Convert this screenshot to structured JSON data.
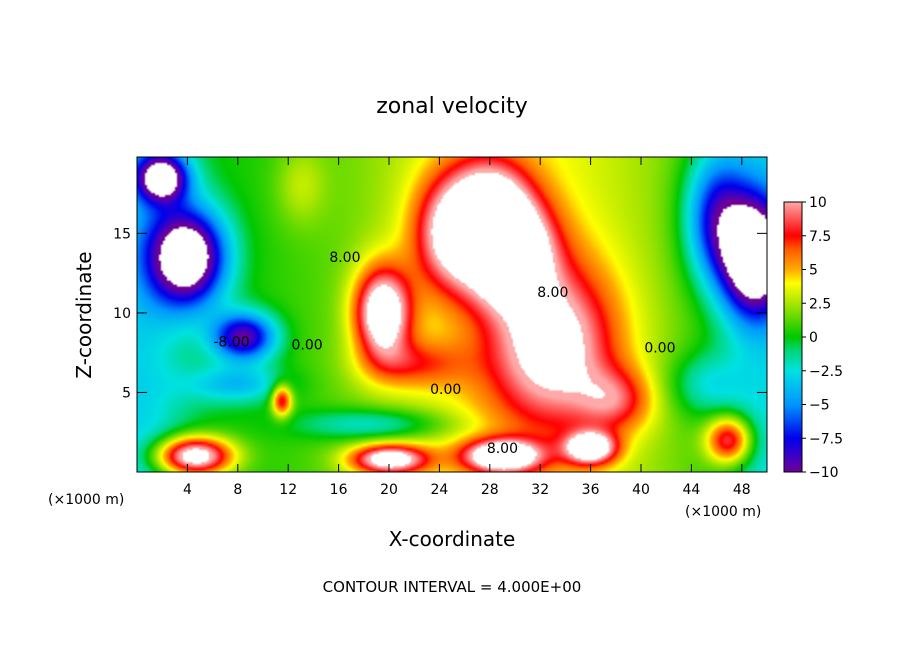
{
  "chart_data": {
    "type": "heatmap",
    "title": "zonal velocity",
    "xlabel": "X-coordinate",
    "ylabel": "Z-coordinate",
    "x_unit": "(×1000 m)",
    "x_unit_right": "(×1000 m)",
    "xlim": [
      0,
      50
    ],
    "ylim": [
      0,
      19.8
    ],
    "x_ticks": [
      4,
      8,
      12,
      16,
      20,
      24,
      28,
      32,
      36,
      40,
      44,
      48
    ],
    "y_ticks": [
      5,
      10,
      15
    ],
    "colorbar": {
      "ticks": [
        "10",
        "7.5",
        "5",
        "2.5",
        "0",
        "−2.5",
        "−5",
        "−7.5",
        "−10"
      ],
      "tick_values": [
        10,
        7.5,
        5,
        2.5,
        0,
        -2.5,
        -5,
        -7.5,
        -10
      ],
      "range": [
        -10,
        10
      ]
    },
    "contour_interval": 4.0,
    "footer": "CONTOUR INTERVAL = 4.000E+00",
    "contour_labels": [
      {
        "text": "8.00",
        "x": 16.5,
        "y": 13.2
      },
      {
        "text": "8.00",
        "x": 33.0,
        "y": 11.0
      },
      {
        "text": "-8.00",
        "x": 7.5,
        "y": 7.9
      },
      {
        "text": "0.00",
        "x": 13.5,
        "y": 7.7
      },
      {
        "text": "0.00",
        "x": 24.5,
        "y": 4.9
      },
      {
        "text": "0.00",
        "x": 41.5,
        "y": 7.5
      },
      {
        "text": "8.00",
        "x": 29.0,
        "y": 1.2
      }
    ],
    "field_blobs": [
      {
        "x": 29.5,
        "y": 14.0,
        "v": 14,
        "sx": 3.2,
        "sy": 3.2
      },
      {
        "x": 19.5,
        "y": 10.0,
        "v": 12,
        "sx": 2.2,
        "sy": 2.8
      },
      {
        "x": 25.0,
        "y": 15.0,
        "v": 9,
        "sx": 3.0,
        "sy": 3.5
      },
      {
        "x": 33.0,
        "y": 8.0,
        "v": 9,
        "sx": 5.0,
        "sy": 5.0
      },
      {
        "x": 28.0,
        "y": 17.5,
        "v": 6,
        "sx": 3.0,
        "sy": 2.5
      },
      {
        "x": 38.0,
        "y": 4.5,
        "v": 5,
        "sx": 3.0,
        "sy": 2.0
      },
      {
        "x": 22.0,
        "y": 6.8,
        "v": 4,
        "sx": 4.0,
        "sy": 1.5
      },
      {
        "x": 4.0,
        "y": 13.5,
        "v": -14,
        "sx": 3.0,
        "sy": 3.0
      },
      {
        "x": 8.5,
        "y": 8.5,
        "v": -10,
        "sx": 2.5,
        "sy": 1.5
      },
      {
        "x": 2.0,
        "y": 18.5,
        "v": -12,
        "sx": 2.0,
        "sy": 1.5
      },
      {
        "x": 49.0,
        "y": 13.5,
        "v": -14,
        "sx": 2.5,
        "sy": 3.5
      },
      {
        "x": 46.0,
        "y": 16.0,
        "v": -8,
        "sx": 2.5,
        "sy": 4.0
      },
      {
        "x": 8.0,
        "y": 5.5,
        "v": -4,
        "sx": 4.0,
        "sy": 1.2
      },
      {
        "x": 19.0,
        "y": 3.0,
        "v": -4,
        "sx": 6.0,
        "sy": 1.0
      },
      {
        "x": 4.5,
        "y": 1.0,
        "v": 13,
        "sx": 3.0,
        "sy": 1.2
      },
      {
        "x": 29.0,
        "y": 1.0,
        "v": 12,
        "sx": 3.0,
        "sy": 1.0
      },
      {
        "x": 20.0,
        "y": 0.8,
        "v": 11,
        "sx": 3.0,
        "sy": 0.9
      },
      {
        "x": 36.0,
        "y": 1.5,
        "v": 11,
        "sx": 2.0,
        "sy": 1.0
      },
      {
        "x": 47.0,
        "y": 2.0,
        "v": 9,
        "sx": 1.8,
        "sy": 1.5
      },
      {
        "x": 11.5,
        "y": 4.5,
        "v": 8,
        "sx": 0.8,
        "sy": 1.0
      },
      {
        "x": 13.0,
        "y": 18.0,
        "v": 2,
        "sx": 2.0,
        "sy": 2.5
      },
      {
        "x": 45.0,
        "y": 5.5,
        "v": -3,
        "sx": 3.0,
        "sy": 2.0
      }
    ]
  }
}
